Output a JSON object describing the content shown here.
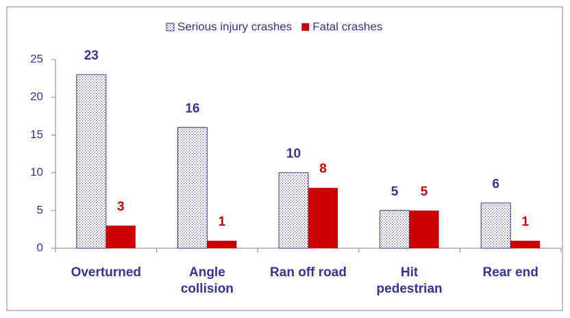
{
  "chart_data": {
    "type": "bar",
    "categories": [
      "Overturned",
      "Angle\ncollision",
      "Ran off road",
      "Hit\npedestrian",
      "Rear end"
    ],
    "series": [
      {
        "name": "Serious injury crashes",
        "color": "#333399",
        "values": [
          23,
          16,
          10,
          5,
          6
        ]
      },
      {
        "name": "Fatal crashes",
        "color": "#cc0000",
        "values": [
          3,
          1,
          8,
          5,
          1
        ]
      }
    ],
    "ylim": [
      0,
      25
    ],
    "yticks": [
      0,
      5,
      10,
      15,
      20,
      25
    ],
    "legend": "top"
  }
}
